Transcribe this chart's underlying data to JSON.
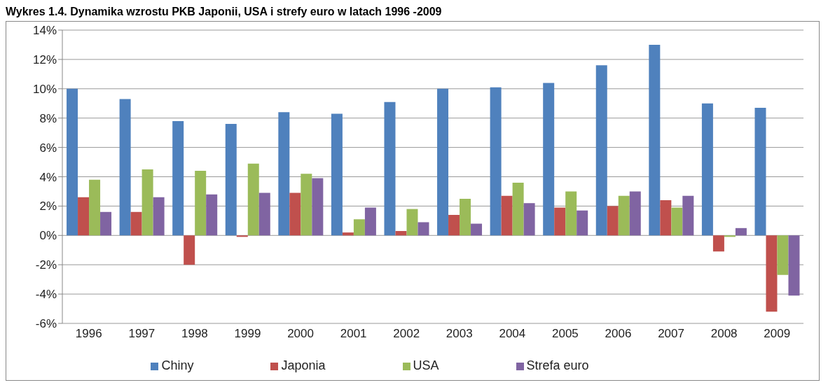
{
  "chart_data": {
    "type": "bar",
    "title": "Wykres 1.4. Dynamika wzrostu PKB Japonii, USA i strefy euro w latach 1996 -2009",
    "categories": [
      "1996",
      "1997",
      "1998",
      "1999",
      "2000",
      "2001",
      "2002",
      "2003",
      "2004",
      "2005",
      "2006",
      "2007",
      "2008",
      "2009"
    ],
    "series": [
      {
        "name": "Chiny",
        "color": "#4f81bd",
        "values": [
          10.0,
          9.3,
          7.8,
          7.6,
          8.4,
          8.3,
          9.1,
          10.0,
          10.1,
          10.4,
          11.6,
          13.0,
          9.0,
          8.7
        ]
      },
      {
        "name": "Japonia",
        "color": "#c0504d",
        "values": [
          2.6,
          1.6,
          -2.0,
          -0.1,
          2.9,
          0.2,
          0.3,
          1.4,
          2.7,
          1.9,
          2.0,
          2.4,
          -1.1,
          -5.2
        ]
      },
      {
        "name": "USA",
        "color": "#9bbb59",
        "values": [
          3.8,
          4.5,
          4.4,
          4.9,
          4.2,
          1.1,
          1.8,
          2.5,
          3.6,
          3.0,
          2.7,
          1.9,
          -0.1,
          -2.7
        ]
      },
      {
        "name": "Strefa euro",
        "color": "#8064a2",
        "values": [
          1.6,
          2.6,
          2.8,
          2.9,
          3.9,
          1.9,
          0.9,
          0.8,
          2.2,
          1.7,
          3.0,
          2.7,
          0.5,
          -4.1
        ]
      }
    ],
    "ylim": [
      -6,
      14
    ],
    "yticks": [
      {
        "value": -6,
        "label": "-6%"
      },
      {
        "value": -4,
        "label": "-4%"
      },
      {
        "value": -2,
        "label": "-2%"
      },
      {
        "value": 0,
        "label": "0%"
      },
      {
        "value": 2,
        "label": "2%"
      },
      {
        "value": 4,
        "label": "4%"
      },
      {
        "value": 6,
        "label": "6%"
      },
      {
        "value": 8,
        "label": "8%"
      },
      {
        "value": 10,
        "label": "10%"
      },
      {
        "value": 12,
        "label": "12%"
      },
      {
        "value": 14,
        "label": "14%"
      }
    ],
    "grid": "y",
    "legend": "bottom"
  }
}
